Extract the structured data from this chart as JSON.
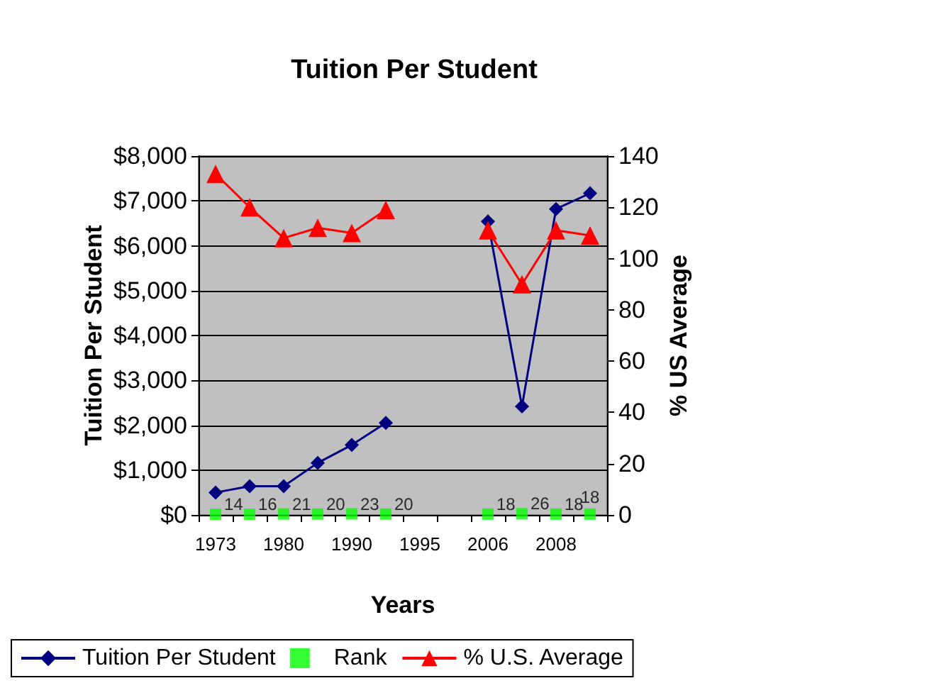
{
  "chart_data": {
    "type": "line",
    "title": "Tuition Per Student",
    "xlabel": "Years",
    "ylabel": "Tuition Per Student",
    "y2label": "% US Average",
    "categories": [
      "1973",
      null,
      "1980",
      null,
      "1990",
      null,
      "1995",
      null,
      "2006",
      null,
      "2008",
      null
    ],
    "series": [
      {
        "name": "Tuition Per Student",
        "color": "#000080",
        "marker": "diamond",
        "values": [
          500,
          640,
          640,
          1160,
          1560,
          2050,
          null,
          null,
          6540,
          2420,
          6820,
          7170
        ]
      },
      {
        "name": "Rank",
        "type": "scatter",
        "color": "#00ff00",
        "marker": "square",
        "data_labels": true,
        "values": [
          14,
          16,
          21,
          20,
          23,
          20,
          null,
          null,
          18,
          26,
          18,
          18
        ]
      },
      {
        "name": "% U.S. Average",
        "color": "#ff0000",
        "marker": "triangle",
        "axis": "y2",
        "values": [
          133,
          120,
          108,
          112,
          110,
          119,
          null,
          null,
          111,
          90,
          111,
          109
        ]
      }
    ],
    "ylim": [
      0,
      8000
    ],
    "yticks": [
      {
        "value": 0,
        "label": "$0"
      },
      {
        "value": 1000,
        "label": "$1,000"
      },
      {
        "value": 2000,
        "label": "$2,000"
      },
      {
        "value": 3000,
        "label": "$3,000"
      },
      {
        "value": 4000,
        "label": "$4,000"
      },
      {
        "value": 5000,
        "label": "$5,000"
      },
      {
        "value": 6000,
        "label": "$6,000"
      },
      {
        "value": 7000,
        "label": "$7,000"
      },
      {
        "value": 8000,
        "label": "$8,000"
      }
    ],
    "y2lim": [
      0,
      140
    ],
    "y2ticks": [
      0,
      20,
      40,
      60,
      80,
      100,
      120,
      140
    ],
    "grid": "y",
    "legend": "bottom"
  }
}
